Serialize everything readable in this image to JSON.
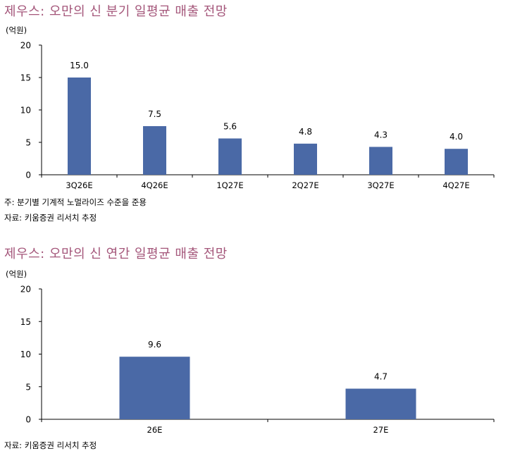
{
  "chart1": {
    "title": "제우스: 오만의 신 분기 일평균 매출 전망",
    "ylabel": "(억원)",
    "footnote": "주: 분기별 기계적 노멀라이즈 수준을 준용",
    "source": "자료: 키움증권 리서치 추정",
    "bar_color": "#4a69a6"
  },
  "chart2": {
    "title": "제우스: 오만의 신 연간 일평균 매출 전망",
    "ylabel": "(억원)",
    "source": "자료: 키움증권 리서치 추정",
    "bar_color": "#4a69a6"
  },
  "chart_data": [
    {
      "type": "bar",
      "title": "제우스: 오만의 신 분기 일평균 매출 전망",
      "ylabel": "(억원)",
      "xlabel": "",
      "categories": [
        "3Q26E",
        "4Q26E",
        "1Q27E",
        "2Q27E",
        "3Q27E",
        "4Q27E"
      ],
      "values": [
        15.0,
        7.5,
        5.6,
        4.8,
        4.3,
        4.0
      ],
      "value_labels": [
        "15.0",
        "7.5",
        "5.6",
        "4.8",
        "4.3",
        "4.0"
      ],
      "ylim": [
        0,
        20
      ],
      "yticks": [
        "0",
        "5",
        "10",
        "15",
        "20"
      ],
      "grid": false,
      "legend": "none"
    },
    {
      "type": "bar",
      "title": "제우스: 오만의 신 연간 일평균 매출 전망",
      "ylabel": "(억원)",
      "xlabel": "",
      "categories": [
        "26E",
        "27E"
      ],
      "values": [
        9.6,
        4.7
      ],
      "value_labels": [
        "9.6",
        "4.7"
      ],
      "ylim": [
        0,
        20
      ],
      "yticks": [
        "0",
        "5",
        "10",
        "15",
        "20"
      ],
      "grid": false,
      "legend": "none"
    }
  ]
}
